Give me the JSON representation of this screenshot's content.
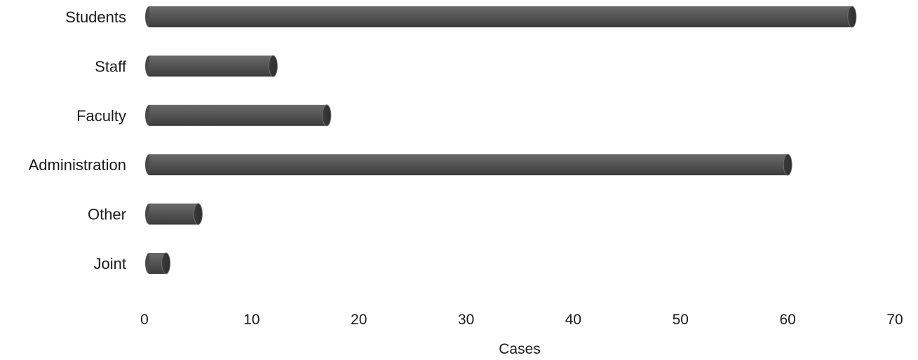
{
  "chart_data": {
    "type": "bar",
    "orientation": "horizontal",
    "categories": [
      "Students",
      "Staff",
      "Faculty",
      "Administration",
      "Other",
      "Joint"
    ],
    "values": [
      66,
      12,
      17,
      60,
      5,
      2
    ],
    "xlabel": "Cases",
    "xlim": [
      0,
      70
    ],
    "xticks": [
      0,
      10,
      20,
      30,
      40,
      50,
      60,
      70
    ],
    "grid": false,
    "legend": "none",
    "bar_color": "#555555",
    "bar_cap_color": "#3a3a3a"
  }
}
